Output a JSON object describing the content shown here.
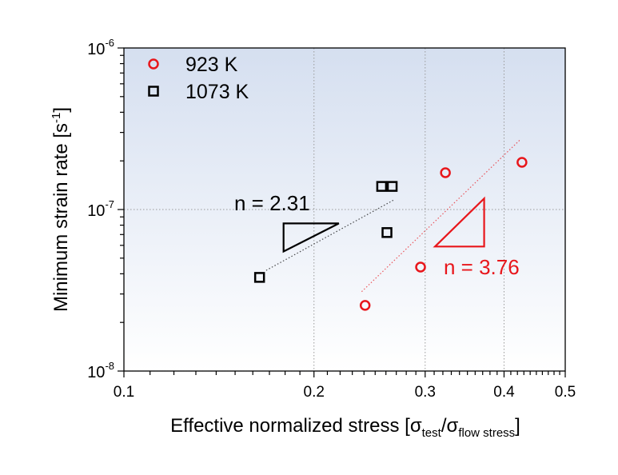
{
  "chart_data": {
    "type": "scatter",
    "title": "",
    "xlabel": "Effective normalized stress [σ_test/σ_flow stress]",
    "xlabel_parts": {
      "main": "Effective normalized stress [σ",
      "sub1": "test",
      "mid": "/σ",
      "sub2": "flow stress",
      "end": "]"
    },
    "ylabel": "Minimum strain rate [s-1]",
    "ylabel_parts": {
      "main": "Minimum strain rate [s",
      "sup": "-1",
      "end": "]"
    },
    "xscale": "log",
    "yscale": "log",
    "xlim": [
      0.1,
      0.5
    ],
    "ylim": [
      1e-08,
      1e-06
    ],
    "xticks": [
      {
        "v": 0.1,
        "label": "0.1"
      },
      {
        "v": 0.2,
        "label": "0.2"
      },
      {
        "v": 0.3,
        "label": "0.3"
      },
      {
        "v": 0.4,
        "label": "0.4"
      },
      {
        "v": 0.5,
        "label": "0.5"
      }
    ],
    "yticks": [
      {
        "v": 1e-08,
        "base": "10",
        "exp": "-8"
      },
      {
        "v": 1e-07,
        "base": "10",
        "exp": "-7"
      },
      {
        "v": 1e-06,
        "base": "10",
        "exp": "-6"
      }
    ],
    "grid": true,
    "legend_position": "top-left",
    "series": [
      {
        "name": "923 K",
        "marker": "circle",
        "color": "#e8161b",
        "x": [
          0.241,
          0.295,
          0.323,
          0.427
        ],
        "y": [
          2.55e-08,
          4.4e-08,
          1.69e-07,
          1.96e-07
        ]
      },
      {
        "name": "1073 K",
        "marker": "square",
        "color": "#000000",
        "x": [
          0.164,
          0.256,
          0.266,
          0.261
        ],
        "y": [
          3.8e-08,
          1.39e-07,
          1.39e-07,
          7.2e-08
        ]
      }
    ],
    "fit_lines": [
      {
        "color": "#000000",
        "x": [
          0.168,
          0.268
        ],
        "y": [
          4.2e-08,
          1.15e-07
        ],
        "label": "n = 2.31",
        "triangle": {
          "x": [
            0.179,
            0.219,
            0.179
          ],
          "y": [
            8.2e-08,
            8.2e-08,
            5.5e-08
          ]
        }
      },
      {
        "color": "#e8161b",
        "x": [
          0.238,
          0.424
        ],
        "y": [
          3.1e-08,
          2.7e-07
        ],
        "label": "n = 3.76",
        "triangle": {
          "x": [
            0.311,
            0.372,
            0.372
          ],
          "y": [
            5.9e-08,
            5.9e-08,
            1.17e-07
          ]
        }
      }
    ]
  }
}
